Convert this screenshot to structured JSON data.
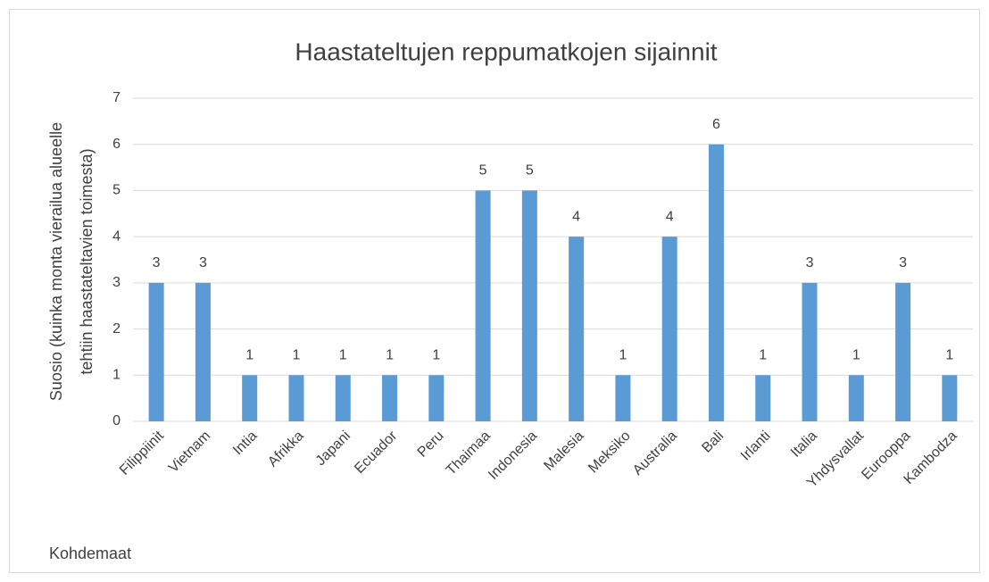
{
  "chart_data": {
    "type": "bar",
    "title": "Haastateltujen reppumatkojen sijainnit",
    "ylabel": [
      "Suosio (kuinka monta vierailua  alueelle",
      "tehtiin haastateltavien toimesta)"
    ],
    "xlabel": "Kohdemaat",
    "categories": [
      "Filippiinit",
      "Vietnam",
      "Intia",
      "Afrikka",
      "Japani",
      "Ecuador",
      "Peru",
      "Thaimaa",
      "Indonesia",
      "Malesia",
      "Meksiko",
      "Australia",
      "Bali",
      "Irlanti",
      "Italia",
      "Yhdysvallat",
      "Eurooppa",
      "Kambodza"
    ],
    "values": [
      3,
      3,
      1,
      1,
      1,
      1,
      1,
      5,
      5,
      4,
      1,
      4,
      6,
      1,
      3,
      1,
      3,
      1
    ],
    "color": "#5b9bd5",
    "ylim": [
      0,
      7
    ],
    "yticks": [
      0,
      1,
      2,
      3,
      4,
      5,
      6,
      7
    ],
    "grid": true
  }
}
